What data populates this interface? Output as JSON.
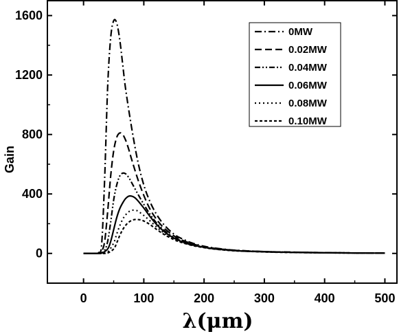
{
  "chart_data": {
    "type": "line",
    "title": "",
    "xlabel": "λ(μm)",
    "ylabel": "Gain",
    "xlim": [
      -60,
      520
    ],
    "ylim": [
      -200,
      1700
    ],
    "xticks": [
      0,
      100,
      200,
      300,
      400,
      500
    ],
    "yticks": [
      0,
      400,
      800,
      1200,
      1600
    ],
    "x_tick_labels": [
      "0",
      "100",
      "200",
      "300",
      "400",
      "500"
    ],
    "y_tick_labels": [
      "0",
      "400",
      "800",
      "1200",
      "1600"
    ],
    "grid": false,
    "legend_position": "top-right",
    "series": [
      {
        "name": "0MW",
        "dash": "dash-dot",
        "x": [
          0,
          10,
          20,
          25,
          30,
          35,
          40,
          45,
          50,
          55,
          60,
          65,
          70,
          80,
          90,
          100,
          110,
          120,
          130,
          140,
          150,
          160,
          180,
          200,
          220,
          250,
          300,
          350,
          400,
          450,
          500
        ],
        "y": [
          0,
          0,
          0,
          5,
          60,
          500,
          1120,
          1450,
          1565,
          1550,
          1440,
          1270,
          1100,
          840,
          620,
          460,
          350,
          270,
          210,
          165,
          130,
          105,
          70,
          48,
          35,
          22,
          12,
          8,
          5,
          3,
          2
        ]
      },
      {
        "name": "0.02MW",
        "dash": "dash",
        "x": [
          0,
          10,
          20,
          25,
          30,
          35,
          40,
          45,
          50,
          55,
          60,
          65,
          70,
          75,
          80,
          90,
          100,
          110,
          120,
          130,
          140,
          150,
          160,
          180,
          200,
          220,
          250,
          300,
          350,
          400,
          450,
          500
        ],
        "y": [
          0,
          0,
          0,
          2,
          15,
          80,
          280,
          520,
          690,
          780,
          810,
          800,
          760,
          700,
          630,
          500,
          390,
          300,
          235,
          185,
          148,
          118,
          95,
          65,
          45,
          33,
          21,
          12,
          8,
          5,
          3,
          2
        ]
      },
      {
        "name": "0.04MW",
        "dash": "dash-dot-dot",
        "x": [
          0,
          10,
          20,
          30,
          35,
          40,
          45,
          50,
          55,
          60,
          65,
          70,
          75,
          80,
          90,
          100,
          110,
          120,
          130,
          140,
          150,
          160,
          180,
          200,
          220,
          250,
          300,
          350,
          400,
          450,
          500
        ],
        "y": [
          0,
          0,
          0,
          5,
          20,
          80,
          210,
          360,
          460,
          520,
          540,
          535,
          510,
          475,
          400,
          330,
          265,
          210,
          168,
          135,
          108,
          88,
          60,
          43,
          31,
          20,
          12,
          7,
          5,
          3,
          2
        ]
      },
      {
        "name": "0.06MW",
        "dash": "solid",
        "x": [
          0,
          10,
          20,
          30,
          40,
          45,
          50,
          55,
          60,
          65,
          70,
          75,
          80,
          85,
          90,
          100,
          110,
          120,
          130,
          140,
          150,
          160,
          180,
          200,
          220,
          250,
          300,
          350,
          400,
          450,
          500
        ],
        "y": [
          0,
          0,
          0,
          2,
          30,
          80,
          160,
          240,
          300,
          340,
          370,
          385,
          385,
          375,
          355,
          305,
          250,
          200,
          160,
          128,
          103,
          84,
          58,
          41,
          30,
          19,
          11,
          7,
          4,
          3,
          2
        ]
      },
      {
        "name": "0.08MW",
        "dash": "dot",
        "x": [
          0,
          10,
          20,
          30,
          40,
          50,
          55,
          60,
          65,
          70,
          75,
          80,
          85,
          90,
          100,
          110,
          120,
          130,
          140,
          150,
          160,
          180,
          200,
          220,
          250,
          300,
          350,
          400,
          450,
          500
        ],
        "y": [
          0,
          0,
          0,
          1,
          10,
          70,
          130,
          185,
          230,
          260,
          280,
          290,
          290,
          285,
          255,
          220,
          182,
          148,
          120,
          98,
          80,
          56,
          40,
          29,
          18,
          11,
          7,
          4,
          3,
          2
        ]
      },
      {
        "name": "0.10MW",
        "dash": "short-dash",
        "x": [
          0,
          10,
          20,
          30,
          40,
          50,
          55,
          60,
          65,
          70,
          75,
          80,
          85,
          90,
          95,
          100,
          110,
          120,
          130,
          140,
          150,
          160,
          180,
          200,
          220,
          250,
          300,
          350,
          400,
          450,
          500
        ],
        "y": [
          0,
          0,
          0,
          0,
          3,
          30,
          70,
          120,
          160,
          190,
          210,
          222,
          228,
          228,
          225,
          218,
          195,
          165,
          137,
          113,
          93,
          77,
          54,
          39,
          28,
          18,
          10,
          6,
          4,
          3,
          2
        ]
      }
    ]
  }
}
